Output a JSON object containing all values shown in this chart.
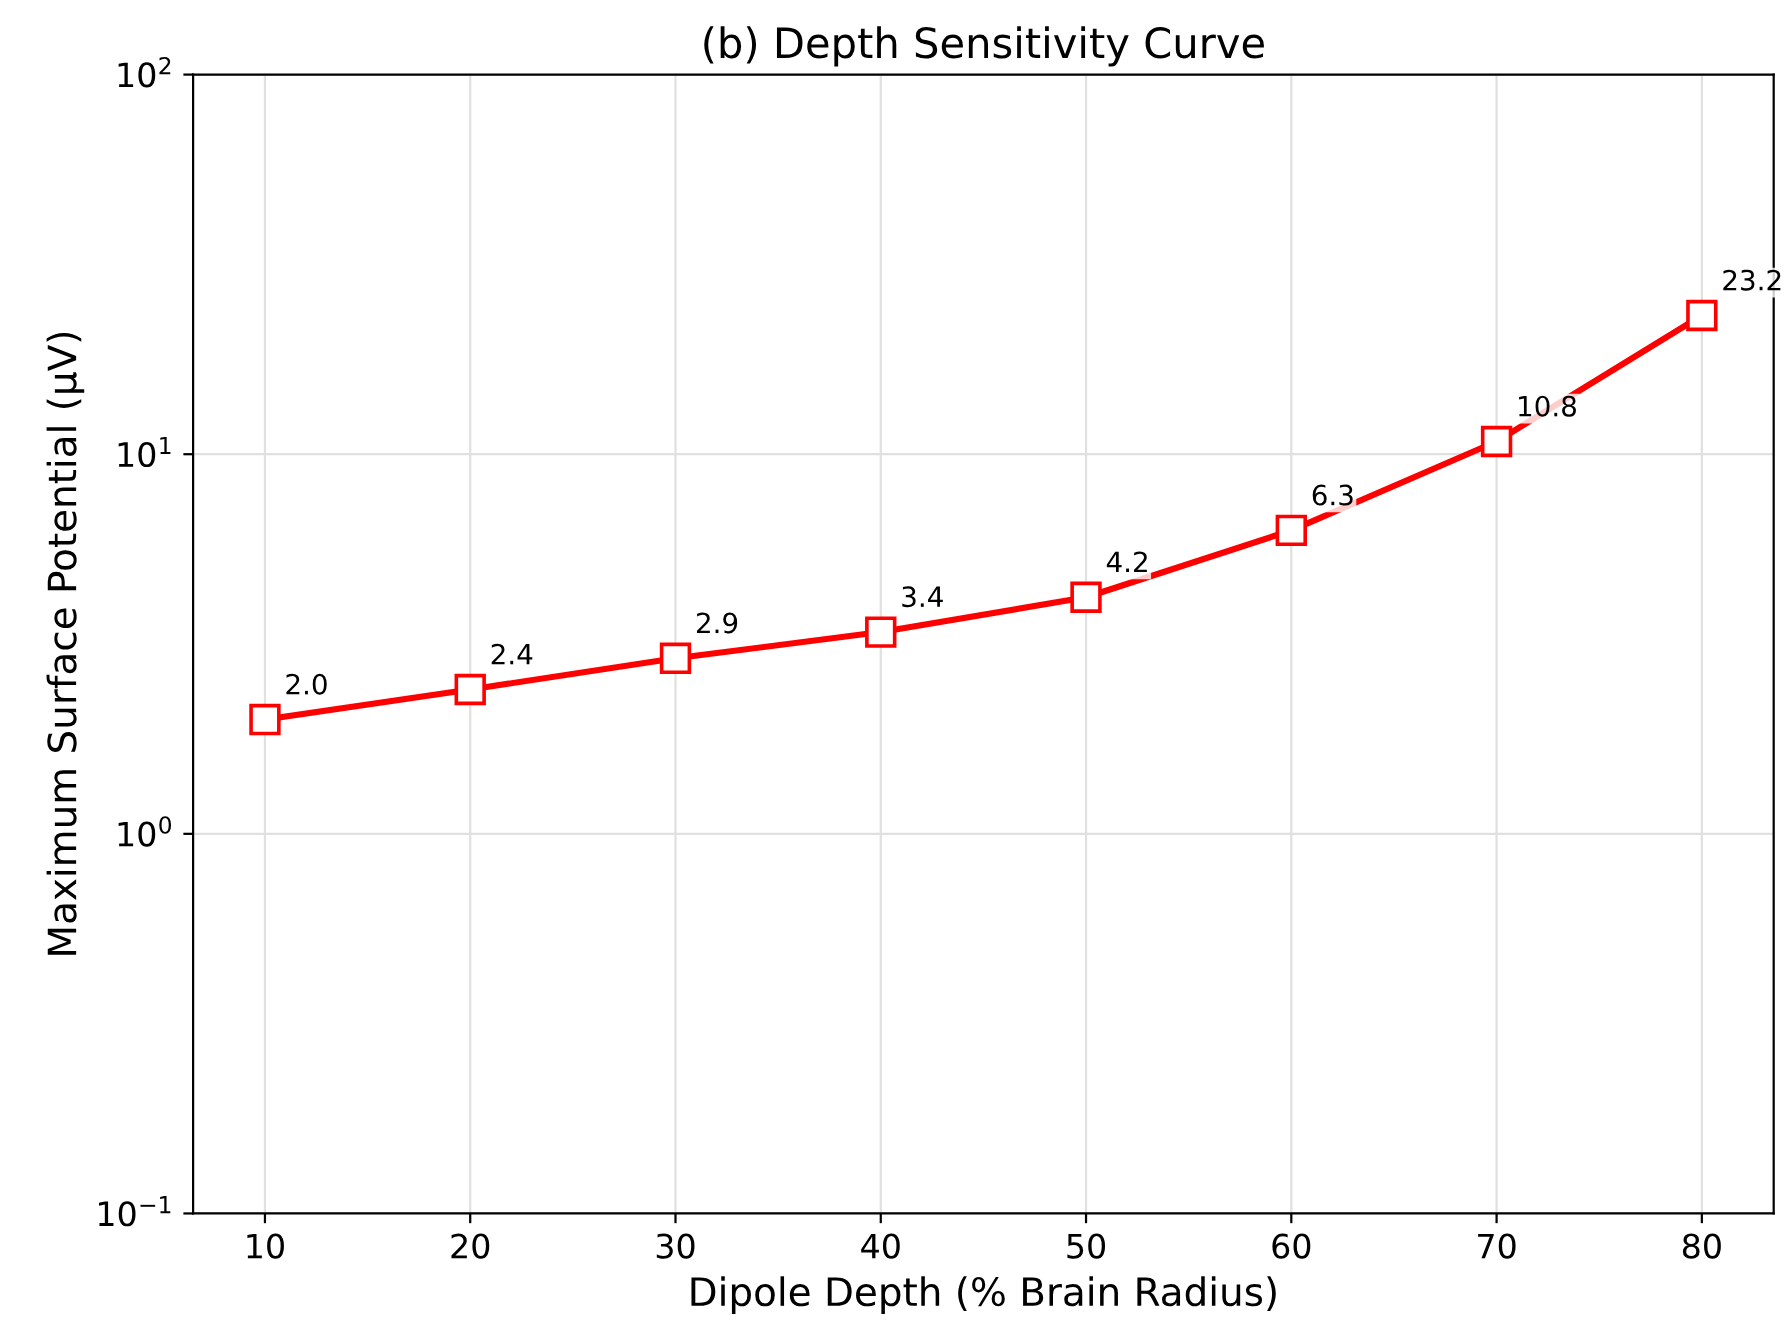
{
  "chart_data": {
    "type": "line",
    "title": "(b) Depth Sensitivity Curve",
    "xlabel": "Dipole Depth (% Brain Radius)",
    "ylabel": "Maximum Surface Potential (µV)",
    "x": [
      10,
      20,
      30,
      40,
      50,
      60,
      70,
      80
    ],
    "series": [
      {
        "color": "#ff0000",
        "values": [
          2.0,
          2.4,
          2.9,
          3.4,
          4.2,
          6.3,
          10.8,
          23.2
        ],
        "value_labels": [
          "2.0",
          "2.4",
          "2.9",
          "3.4",
          "4.2",
          "6.3",
          "10.8",
          "23.2"
        ]
      }
    ],
    "log": "y",
    "xlim": [
      6.5,
      83.5
    ],
    "xticks": [
      10,
      20,
      30,
      40,
      50,
      60,
      70,
      80
    ],
    "ylim": [
      0.1,
      100
    ],
    "yticks": [
      {
        "value": 0.1,
        "label": "10$^{−1}$"
      },
      {
        "value": 1,
        "label": "10$^{0}$"
      },
      {
        "value": 10,
        "label": "10$^{1}$"
      },
      {
        "value": 100,
        "label": "10$^{2}$"
      }
    ],
    "grid": true,
    "marker": "square",
    "line_style": "solid"
  }
}
